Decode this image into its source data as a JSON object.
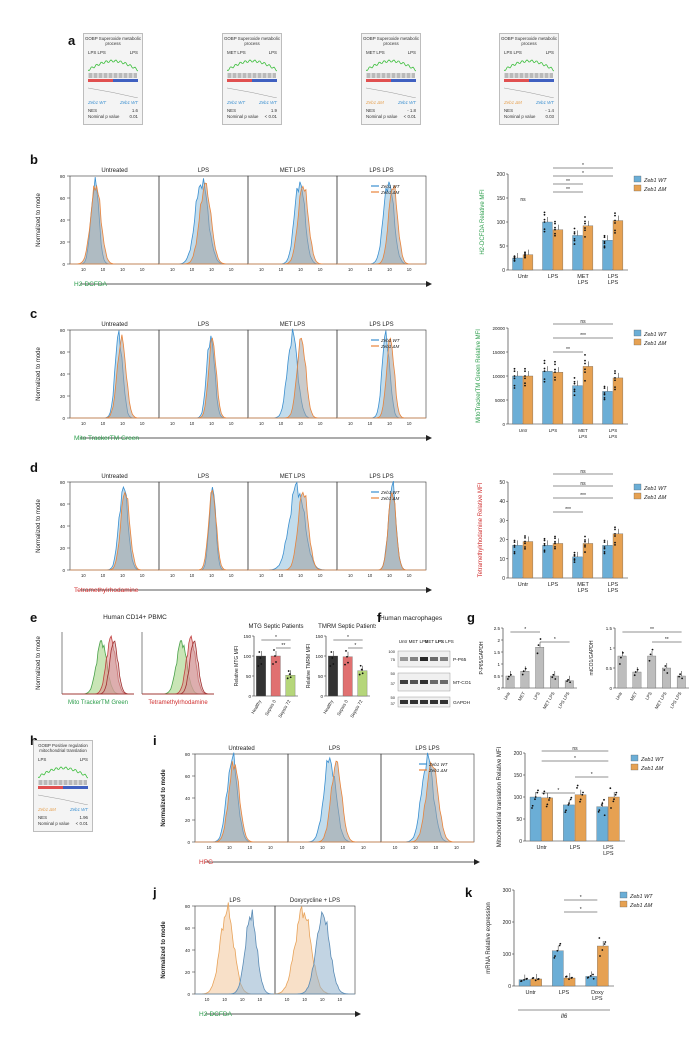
{
  "panels": {
    "a": "a",
    "b": "b",
    "c": "c",
    "d": "d",
    "e": "e",
    "f": "f",
    "g": "g",
    "h": "h",
    "i": "i",
    "j": "j",
    "k": "k"
  },
  "gsea": [
    {
      "title": "GOBP Superoxide metabolic process",
      "cond_left": "LPS LPS",
      "cond_right": "LPS",
      "geno_left": "Zeb1 WT",
      "geno_right": "Zeb1 WT",
      "nes": "1.6",
      "p": "0.01"
    },
    {
      "title": "GOBP Superoxide metabolic process",
      "cond_left": "MET LPS",
      "cond_right": "LPS",
      "geno_left": "Zeb1 WT",
      "geno_right": "Zeb1 WT",
      "nes": "1.9",
      "p": "< 0.01"
    },
    {
      "title": "GOBP Superoxide metabolic process",
      "cond_left": "MET LPS",
      "cond_right": "LPS",
      "geno_left": "Zeb1 ΔM",
      "geno_right": "Zeb1 WT",
      "nes": "- 1.8",
      "p": "< 0.01"
    },
    {
      "title": "GOBP Superoxide metabolic process",
      "cond_left": "LPS LPS",
      "cond_right": "LPS",
      "geno_left": "Zeb1 ΔM",
      "geno_right": "Zeb1 WT",
      "nes": "- 1.4",
      "p": "0.03"
    }
  ],
  "gsea_h": {
    "title": "GOBP Positive regulation mitochondrial translation",
    "cond_left": "LPS",
    "cond_right": "LPS",
    "geno_left": "Zeb1 ΔM",
    "geno_right": "Zeb1 WT",
    "nes": "1.96",
    "p": "< 0.01"
  },
  "gsea_labels": {
    "nes": "NES",
    "p": "Nominal p value"
  },
  "conditions4": [
    "Untreated",
    "LPS",
    "MET  LPS",
    "LPS  LPS"
  ],
  "conditions3": [
    "Untreated",
    "LPS",
    "LPS  LPS"
  ],
  "conditions_j": [
    "LPS",
    "Doxycycline + LPS"
  ],
  "legend": {
    "wt": "Zeb1 WT",
    "dm": "Zeb1 ΔM"
  },
  "ylabel_hist": "Normalized to mode",
  "xlabels": {
    "b": "H2-DCFDA",
    "c": "Mito TrackerTM Green",
    "d": "Tetramethylrhodamine",
    "i": "HPG",
    "j": "H2-DCFDA"
  },
  "bar_ylabels": {
    "b": "H2-DCFDA Relative MFI",
    "c": "MitoTrackerTM Green Relative MFI",
    "d": "Tetramethylrhodamine Relative MFI",
    "i": "Mitochondrial translation Relative MFI",
    "k": "mRNA Relative expression"
  },
  "bar_categories": {
    "four": [
      "Untr",
      "LPS",
      "MET LPS",
      "LPS LPS"
    ],
    "three": [
      "Untr",
      "LPS",
      "LPS LPS"
    ],
    "k": [
      "Untr",
      "LPS",
      "Doxy LPS"
    ]
  },
  "k_gene": "Il6",
  "colors": {
    "wt": "#6baed6",
    "dm": "#e6a152",
    "wt_line": "#3a8fd0",
    "dm_line": "#e8833a",
    "healthy": "#333333",
    "sepsis0": "#e07070",
    "sepsis72": "#b5d67a"
  },
  "e": {
    "title": "Human CD14+ PBMC",
    "xlabels": [
      "Mito TrackerTM Green",
      "Tetramethylrhodamine"
    ],
    "bar1": {
      "title": "MTG Septic Patients",
      "ylabel": "Relative MTG MFI"
    },
    "bar2": {
      "title": "TMRM Septic Patients",
      "ylabel": "Relative TMRM MFI"
    },
    "cats": [
      "Healthy",
      "Sepsis 0",
      "Sepsis 72"
    ]
  },
  "f": {
    "title": "Human macrophages",
    "lanes": [
      "Untr",
      "MET",
      "LPS",
      "MET LPS",
      "LPS LPS"
    ],
    "bands": [
      "P-P65",
      "MT-CO1",
      "GAPDH"
    ],
    "markers": [
      "100",
      "75",
      "50",
      "37",
      "50",
      "37"
    ]
  },
  "g": {
    "ylabel1": "P-P65/GAPDH",
    "ylabel2": "mtCO1/GAPDH",
    "cats": [
      "Untr",
      "MET",
      "LPS",
      "MET LPS",
      "LPS LPS"
    ]
  },
  "chart_data": [
    {
      "type": "bar",
      "panel": "b",
      "categories": [
        "Untr",
        "LPS",
        "MET LPS",
        "LPS LPS"
      ],
      "series": [
        {
          "name": "Zeb1 WT",
          "values": [
            25,
            100,
            72,
            62
          ]
        },
        {
          "name": "Zeb1 ΔM",
          "values": [
            32,
            84,
            92,
            103
          ]
        }
      ],
      "ylabel": "H2-DCFDA Relative MFI",
      "ylim": [
        0,
        200
      ],
      "yticks": [
        0,
        50,
        100,
        150,
        200
      ]
    },
    {
      "type": "bar",
      "panel": "c",
      "categories": [
        "Untr",
        "LPS",
        "MET LPS",
        "LPS LPS"
      ],
      "series": [
        {
          "name": "Zeb1 WT",
          "values": [
            10000,
            11000,
            8000,
            6800
          ]
        },
        {
          "name": "Zeb1 ΔM",
          "values": [
            10000,
            10800,
            12000,
            9600
          ]
        }
      ],
      "ylabel": "MitoTrackerTM Green Relative MFI",
      "ylim": [
        0,
        20000
      ],
      "yticks": [
        0,
        5000,
        10000,
        15000,
        20000
      ]
    },
    {
      "type": "bar",
      "panel": "d",
      "categories": [
        "Untr",
        "LPS",
        "MET LPS",
        "LPS LPS"
      ],
      "series": [
        {
          "name": "Zeb1 WT",
          "values": [
            17,
            17,
            11,
            17
          ]
        },
        {
          "name": "Zeb1 ΔM",
          "values": [
            19,
            18,
            18,
            23
          ]
        }
      ],
      "ylabel": "Tetramethylrhodamine Relative MFI",
      "ylim": [
        0,
        50
      ],
      "yticks": [
        0,
        10,
        20,
        30,
        40,
        50
      ]
    },
    {
      "type": "bar",
      "panel": "e1",
      "categories": [
        "Healthy",
        "Sepsis 0",
        "Sepsis 72"
      ],
      "values": [
        100,
        100,
        52
      ],
      "title": "MTG Septic Patients",
      "ylabel": "Relative MTG MFI",
      "ylim": [
        0,
        150
      ],
      "yticks": [
        0,
        50,
        100,
        150
      ]
    },
    {
      "type": "bar",
      "panel": "e2",
      "categories": [
        "Healthy",
        "Sepsis 0",
        "Sepsis 72"
      ],
      "values": [
        100,
        98,
        63
      ],
      "title": "TMRM Septic Patients",
      "ylabel": "Relative TMRM MFI",
      "ylim": [
        0,
        150
      ],
      "yticks": [
        0,
        50,
        100,
        150
      ]
    },
    {
      "type": "bar",
      "panel": "g1",
      "categories": [
        "Untr",
        "MET",
        "LPS",
        "MET LPS",
        "LPS LPS"
      ],
      "values": [
        0.5,
        0.7,
        1.7,
        0.5,
        0.3
      ],
      "ylabel": "P-P65/GAPDH",
      "ylim": [
        0,
        2.5
      ],
      "yticks": [
        0,
        0.5,
        1.0,
        1.5,
        2.0,
        2.5
      ]
    },
    {
      "type": "bar",
      "panel": "g2",
      "categories": [
        "Untr",
        "MET",
        "LPS",
        "MET LPS",
        "LPS LPS"
      ],
      "values": [
        0.8,
        0.4,
        0.8,
        0.5,
        0.3
      ],
      "ylabel": "mtCO1/GAPDH",
      "ylim": [
        0,
        1.5
      ],
      "yticks": [
        0,
        0.5,
        1.0,
        1.5
      ]
    },
    {
      "type": "bar",
      "panel": "i",
      "categories": [
        "Untr",
        "LPS",
        "LPS LPS"
      ],
      "series": [
        {
          "name": "Zeb1 WT",
          "values": [
            100,
            82,
            78
          ]
        },
        {
          "name": "Zeb1 ΔM",
          "values": [
            98,
            105,
            100
          ]
        }
      ],
      "ylabel": "Mitochondrial translation Relative MFI",
      "ylim": [
        0,
        200
      ],
      "yticks": [
        0,
        50,
        100,
        150,
        200
      ]
    },
    {
      "type": "bar",
      "panel": "k",
      "categories": [
        "Untr",
        "LPS",
        "Doxy LPS"
      ],
      "series": [
        {
          "name": "Zeb1 WT",
          "values": [
            20,
            110,
            30
          ]
        },
        {
          "name": "Zeb1 ΔM",
          "values": [
            22,
            25,
            125
          ]
        }
      ],
      "ylabel": "mRNA Relative expression",
      "xlabel": "Il6",
      "ylim": [
        0,
        300
      ],
      "yticks": [
        0,
        100,
        200,
        300
      ]
    }
  ]
}
